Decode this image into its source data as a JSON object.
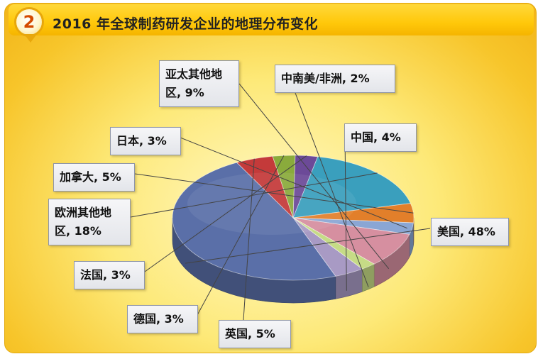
{
  "badge": "2",
  "title": "2016 年全球制药研发企业的地理分布变化",
  "chart_data": {
    "type": "pie",
    "title": "2016 年全球制药研发企业的地理分布变化",
    "unit": "%",
    "slices": [
      {
        "name": "中国",
        "value": 4,
        "label": "中国, 4%",
        "color": "#a89ac4"
      },
      {
        "name": "美国",
        "value": 48,
        "label": "美国, 48%",
        "color": "#5a6fa8"
      },
      {
        "name": "英国",
        "value": 5,
        "label": "英国, 5%",
        "color": "#c43a3a"
      },
      {
        "name": "德国",
        "value": 3,
        "label": "德国, 3%",
        "color": "#8aab3c"
      },
      {
        "name": "法国",
        "value": 3,
        "label": "法国, 3%",
        "color": "#6c4a98"
      },
      {
        "name": "欧洲其他地区",
        "value": 18,
        "label": "欧洲其他地区, 18%",
        "color": "#3a9fbd"
      },
      {
        "name": "加拿大",
        "value": 5,
        "label": "加拿大, 5%",
        "color": "#e27f2a"
      },
      {
        "name": "日本",
        "value": 3,
        "label": "日本, 3%",
        "color": "#8aa6d4"
      },
      {
        "name": "亚太其他地区",
        "value": 9,
        "label": "亚太其他地区, 9%",
        "color": "#d68fa0"
      },
      {
        "name": "中南美/非洲",
        "value": 2,
        "label": "中南美/非洲, 2%",
        "color": "#c6db86"
      }
    ],
    "callouts": [
      {
        "lines": [
          "亚太其他地",
          "区, 9%"
        ]
      },
      {
        "lines": [
          "中南美/非洲, 2%"
        ]
      },
      {
        "lines": [
          "日本, 3%"
        ]
      },
      {
        "lines": [
          "中国, 4%"
        ]
      },
      {
        "lines": [
          "加拿大, 5%"
        ]
      },
      {
        "lines": [
          "欧洲其他地",
          "区, 18%"
        ]
      },
      {
        "lines": [
          "美国, 48%"
        ]
      },
      {
        "lines": [
          "法国, 3%"
        ]
      },
      {
        "lines": [
          "德国, 3%"
        ]
      },
      {
        "lines": [
          "英国, 5%"
        ]
      }
    ]
  }
}
